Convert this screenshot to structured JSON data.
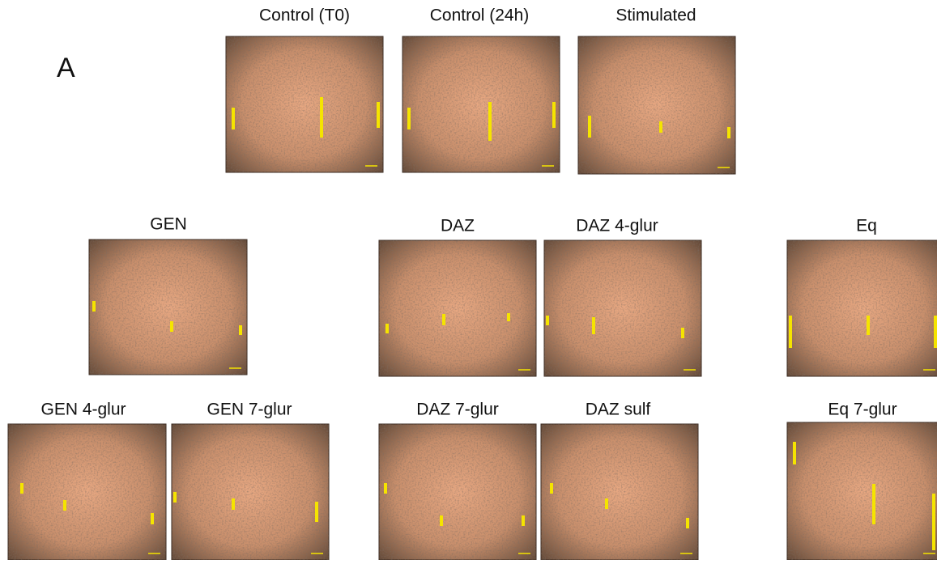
{
  "figure": {
    "panel_label": "A",
    "panels": [
      {
        "title": "Control (T0)"
      },
      {
        "title": "Control (24h)"
      },
      {
        "title": "Stimulated"
      },
      {
        "title": "GEN"
      },
      {
        "title": "DAZ"
      },
      {
        "title": "DAZ 4-glur"
      },
      {
        "title": "Eq"
      },
      {
        "title": "GEN 4-glur"
      },
      {
        "title": "GEN 7-glur"
      },
      {
        "title": "DAZ 7-glur"
      },
      {
        "title": "DAZ sulf"
      },
      {
        "title": "Eq 7-glur"
      }
    ]
  }
}
